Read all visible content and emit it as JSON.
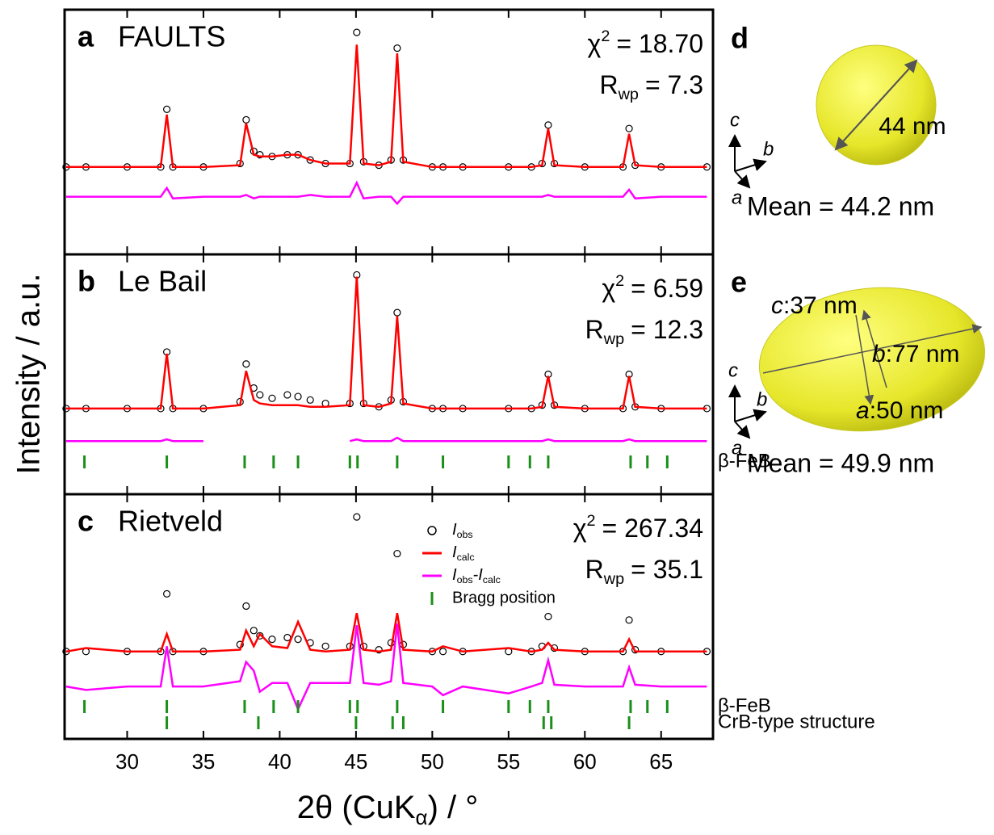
{
  "chart_data": [
    {
      "type": "line",
      "panel": "a",
      "title": "FAULTS",
      "chi2": "= 18.70",
      "rwp": "= 7.3",
      "x": [
        26,
        27.3,
        30,
        32.2,
        32.6,
        33.0,
        35,
        37.4,
        37.8,
        38.3,
        38.7,
        39.5,
        40.5,
        41.2,
        42,
        43,
        44.6,
        45.05,
        45.5,
        46.5,
        47.3,
        47.7,
        48.1,
        50,
        50.7,
        52,
        55,
        56.5,
        57.2,
        57.6,
        58,
        60,
        62.5,
        62.9,
        63.3,
        65,
        68
      ],
      "xlim": [
        25.9,
        68.4
      ],
      "ylim": [
        -50,
        90
      ],
      "series": [
        {
          "color": "#000000",
          "marker": "circle",
          "values": [
            0,
            0,
            0,
            0,
            33,
            0,
            0,
            2,
            27,
            9,
            7,
            6,
            7,
            7,
            4,
            2,
            2,
            77,
            3,
            1,
            4,
            68,
            4,
            0,
            0,
            0,
            0,
            0,
            2,
            24,
            2,
            0,
            0,
            22,
            1,
            0,
            0
          ]
        },
        {
          "color": "#ff0000",
          "values": [
            0,
            0,
            0,
            0,
            30,
            0,
            0,
            1,
            25,
            7,
            6,
            6,
            7,
            7,
            4,
            2,
            2,
            70,
            2,
            1,
            3,
            65,
            3,
            0,
            0,
            0,
            0,
            0,
            1,
            22,
            1,
            0,
            0,
            19,
            1,
            0,
            0
          ]
        },
        {
          "color": "#ff00ff",
          "values": [
            -17,
            -17,
            -17,
            -17,
            -12,
            -18,
            -17,
            -17,
            -16,
            -18,
            -17,
            -17,
            -17,
            -17,
            -16,
            -17,
            -17,
            -9,
            -18,
            -17,
            -17,
            -21,
            -17,
            -17,
            -17,
            -17,
            -17,
            -17,
            -17,
            -16,
            -17,
            -17,
            -17,
            -13,
            -18,
            -17,
            -17
          ]
        }
      ]
    },
    {
      "type": "line",
      "panel": "b",
      "title": "Le Bail",
      "chi2": "= 6.59",
      "rwp": "= 12.3",
      "x": [
        26,
        27.3,
        30,
        32.2,
        32.6,
        33.0,
        35,
        37.4,
        37.8,
        38.3,
        38.7,
        39.5,
        40.5,
        41.2,
        42,
        43,
        44.6,
        45.05,
        45.5,
        46.5,
        47.3,
        47.7,
        48.1,
        50,
        50.7,
        52,
        55,
        56.5,
        57.2,
        57.6,
        58,
        60,
        62.5,
        62.9,
        63.3,
        65,
        68
      ],
      "xlim": [
        25.9,
        68.4
      ],
      "ylim": [
        -50,
        90
      ],
      "series": [
        {
          "color": "#000000",
          "marker": "circle",
          "values": [
            0,
            0,
            0,
            0,
            33,
            0,
            0,
            4,
            26,
            12,
            8,
            6,
            8,
            7,
            5,
            3,
            3,
            78,
            3,
            1,
            5,
            56,
            4,
            0,
            0,
            0,
            0,
            0,
            2,
            20,
            2,
            0,
            0,
            20,
            1,
            0,
            0
          ]
        },
        {
          "color": "#ff0000",
          "values": [
            0,
            0,
            0,
            0,
            32,
            0,
            0,
            2,
            22,
            5,
            3,
            2,
            2,
            2,
            1,
            1,
            2,
            77,
            2,
            1,
            3,
            54,
            3,
            0,
            0,
            0,
            0,
            0,
            1,
            19,
            1,
            0,
            0,
            19,
            1,
            0,
            0
          ]
        },
        {
          "color": "#ff00ff",
          "values": [
            -19,
            -19,
            -19,
            -19,
            -18,
            -19,
            -19,
            null,
            null,
            null,
            null,
            null,
            null,
            null,
            null,
            null,
            -19,
            -18,
            -19,
            -19,
            -19,
            -17,
            -19,
            -19,
            -19,
            -19,
            -19,
            -19,
            -19,
            -18,
            -19,
            -19,
            -19,
            -18,
            -19,
            -19,
            -19
          ]
        }
      ],
      "bragg": [
        {
          "name": "β-FeB",
          "color": "#1a8f1a",
          "positions": [
            27.2,
            32.6,
            37.7,
            39.6,
            41.2,
            44.6,
            45.1,
            47.7,
            50.7,
            55.0,
            56.4,
            57.6,
            63.0,
            64.1,
            65.4
          ]
        }
      ]
    },
    {
      "type": "line",
      "panel": "c",
      "title": "Rietveld",
      "chi2": "= 267.34",
      "rwp": "= 35.1",
      "x": [
        26,
        27.3,
        30,
        32.2,
        32.6,
        33.0,
        35,
        37.4,
        37.8,
        38.3,
        38.7,
        39.5,
        40.5,
        41.2,
        42,
        43,
        44.6,
        45.05,
        45.5,
        46.5,
        47.3,
        47.7,
        48.1,
        50,
        50.7,
        52,
        55,
        56.5,
        57.2,
        57.6,
        58,
        60,
        62.5,
        62.9,
        63.3,
        65,
        68
      ],
      "xlim": [
        25.9,
        68.4
      ],
      "ylim": [
        -50,
        90
      ],
      "xticks": [
        30,
        35,
        40,
        45,
        50,
        55,
        60,
        65
      ],
      "series": [
        {
          "name": [
            [
              "I",
              "obs"
            ]
          ],
          "color": "#000000",
          "marker": "circle",
          "values": [
            0,
            0,
            0,
            0,
            33,
            0,
            0,
            4,
            26,
            12,
            9,
            7,
            8,
            7,
            5,
            3,
            3,
            77,
            3,
            1,
            5,
            56,
            4,
            0,
            0,
            0,
            0,
            0,
            3,
            20,
            2,
            0,
            0,
            18,
            1,
            0,
            0
          ]
        },
        {
          "name": [
            [
              "I",
              "calc"
            ]
          ],
          "color": "#ff0000",
          "values": [
            0,
            2,
            0,
            0,
            10,
            0,
            0,
            1,
            12,
            3,
            10,
            3,
            2,
            17,
            1,
            0,
            1,
            22,
            1,
            0,
            1,
            22,
            1,
            0,
            3,
            0,
            2,
            0,
            1,
            5,
            1,
            0,
            0,
            7,
            0,
            0,
            0
          ]
        },
        {
          "name": [
            [
              "I",
              "obs"
            ],
            [
              "-I",
              "calc"
            ]
          ],
          "color": "#ff00ff",
          "values": [
            -20,
            -22,
            -20,
            -20,
            3,
            -20,
            -20,
            -17,
            -6,
            -11,
            -23,
            -18,
            -18,
            -33,
            -18,
            -18,
            -18,
            15,
            -18,
            -19,
            -17,
            16,
            -18,
            -20,
            -25,
            -20,
            -24,
            -20,
            -18,
            -5,
            -19,
            -20,
            -20,
            -9,
            -19,
            -20,
            -20
          ]
        }
      ],
      "bragg_legend": "Bragg position",
      "bragg": [
        {
          "name": "β-FeB",
          "color": "#1a8f1a",
          "positions": [
            27.2,
            32.6,
            37.7,
            39.6,
            41.2,
            44.6,
            45.1,
            47.7,
            50.7,
            55.0,
            56.4,
            57.6,
            63.0,
            64.1,
            65.4
          ]
        },
        {
          "name": "CrB-type structure",
          "color": "#1a8f1a",
          "positions": [
            32.6,
            38.6,
            45.0,
            47.4,
            48.1,
            57.3,
            57.8,
            62.9
          ]
        }
      ]
    }
  ],
  "y_label": "Intensity / a.u.",
  "x_label": {
    "pre": "2θ (CuK",
    "sub": "α",
    "post": ") / °"
  },
  "stat_labels": {
    "chi": "χ",
    "chi_sup": "2",
    "r": "R",
    "r_sub": "wp"
  },
  "particles": [
    {
      "label": "d",
      "size": "44 nm",
      "axes": [
        "c",
        "b",
        "a"
      ],
      "mean": "Mean = 44.2 nm"
    },
    {
      "label": "e",
      "dims": [
        [
          "c",
          ":37 nm"
        ],
        [
          "b",
          ":77 nm"
        ],
        [
          "a",
          ":50 nm"
        ]
      ],
      "axes": [
        "c",
        "b",
        "a"
      ],
      "mean": "Mean = 49.9 nm"
    }
  ]
}
